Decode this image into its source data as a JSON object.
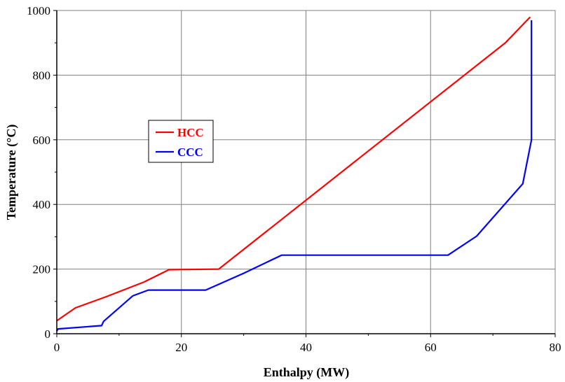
{
  "chart_data": {
    "type": "line",
    "xlabel": "Enthalpy (MW)",
    "ylabel": "Temperature (°C)",
    "xlim": [
      0,
      80
    ],
    "ylim": [
      0,
      1000
    ],
    "xticks": [
      0,
      20,
      40,
      60,
      80
    ],
    "yticks": [
      0,
      200,
      400,
      600,
      800,
      1000
    ],
    "grid": true,
    "legend_position": "center-left",
    "series": [
      {
        "name": "HCC",
        "color": "#ff0000",
        "x": [
          0,
          3,
          8,
          14,
          18,
          26,
          72,
          76
        ],
        "y": [
          40,
          80,
          115,
          160,
          198,
          200,
          900,
          980
        ]
      },
      {
        "name": "CCC",
        "color": "#0000ff",
        "x": [
          0,
          0.2,
          7.2,
          7.5,
          12.2,
          14.7,
          23.9,
          30,
          36.1,
          62.8,
          67.4,
          74.8,
          76.2,
          76.2
        ],
        "y": [
          8,
          15,
          25,
          38,
          117,
          135,
          135,
          187,
          243,
          243,
          302,
          464,
          600,
          970
        ]
      }
    ]
  }
}
